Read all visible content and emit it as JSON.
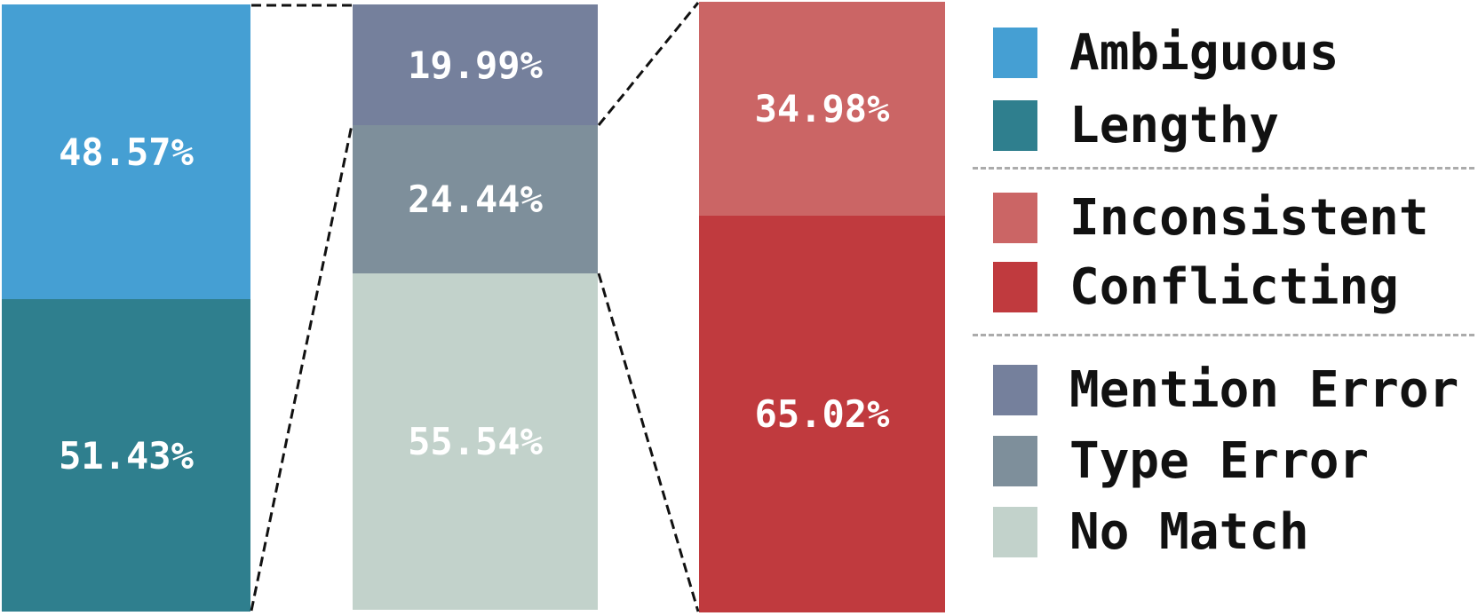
{
  "chart_data": {
    "type": "bar",
    "variant": "stacked-percentage-exploded",
    "title": "",
    "xlabel": "",
    "ylabel": "",
    "axes_visible": false,
    "label_color": "#ffffff",
    "connector_style": "dashed-black",
    "bars": [
      {
        "name": "mention-error-breakdown",
        "segments": [
          {
            "label": "Ambiguous",
            "value": 48.57,
            "display": "48.57%",
            "color": "#459fd3"
          },
          {
            "label": "Lengthy",
            "value": 51.43,
            "display": "51.43%",
            "color": "#2f7f8e"
          }
        ]
      },
      {
        "name": "all-errors",
        "segments": [
          {
            "label": "Mention Error",
            "value": 19.99,
            "display": "19.99%",
            "color": "#75809c"
          },
          {
            "label": "Type Error",
            "value": 24.44,
            "display": "24.44%",
            "color": "#7e8f9b"
          },
          {
            "label": "No Match",
            "value": 55.54,
            "display": "55.54%",
            "color": "#c2d2cb"
          }
        ]
      },
      {
        "name": "type-error-breakdown",
        "segments": [
          {
            "label": "Inconsistent",
            "value": 34.98,
            "display": "34.98%",
            "color": "#cb6565"
          },
          {
            "label": "Conflicting",
            "value": 65.02,
            "display": "65.02%",
            "color": "#c03a3e"
          }
        ]
      }
    ],
    "legend": {
      "position": "right",
      "divider_style": "dashed-gray",
      "groups": [
        {
          "items": [
            {
              "label": "Ambiguous",
              "color": "#459fd3"
            },
            {
              "label": "Lengthy",
              "color": "#2f7f8e"
            }
          ]
        },
        {
          "items": [
            {
              "label": "Inconsistent",
              "color": "#cb6565"
            },
            {
              "label": "Conflicting",
              "color": "#c03a3e"
            }
          ]
        },
        {
          "items": [
            {
              "label": "Mention Error",
              "color": "#75809c"
            },
            {
              "label": "Type Error",
              "color": "#7e8f9b"
            },
            {
              "label": "No Match",
              "color": "#c2d2cb"
            }
          ]
        }
      ]
    }
  }
}
